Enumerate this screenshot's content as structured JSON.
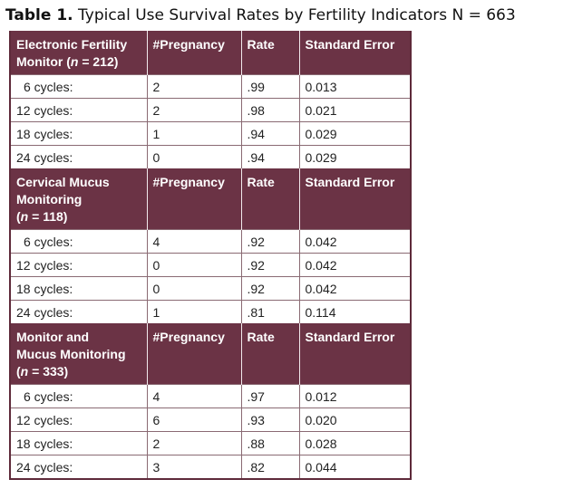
{
  "caption": {
    "label": "Table 1.",
    "text": "Typical Use Survival Rates by Fertility Indicators N = 663"
  },
  "columns": {
    "pregnancy": "#Pregnancy",
    "rate": "Rate",
    "se": "Standard Error"
  },
  "groups": [
    {
      "title_lines": [
        "Electronic Fertility",
        "Monitor ("
      ],
      "n_text": "n",
      "n_value": " = 212)",
      "rows": [
        {
          "cycles": "6 cycles:",
          "pregnancy": "2",
          "rate": ".99",
          "se": "0.013"
        },
        {
          "cycles": "12 cycles:",
          "pregnancy": "2",
          "rate": ".98",
          "se": "0.021"
        },
        {
          "cycles": "18 cycles:",
          "pregnancy": "1",
          "rate": ".94",
          "se": "0.029"
        },
        {
          "cycles": "24 cycles:",
          "pregnancy": "0",
          "rate": ".94",
          "se": "0.029"
        }
      ]
    },
    {
      "title_lines": [
        "Cervical Mucus",
        "Monitoring",
        "("
      ],
      "n_text": "n",
      "n_value": " = 118)",
      "rows": [
        {
          "cycles": "6 cycles:",
          "pregnancy": "4",
          "rate": ".92",
          "se": "0.042"
        },
        {
          "cycles": "12 cycles:",
          "pregnancy": "0",
          "rate": ".92",
          "se": "0.042"
        },
        {
          "cycles": "18 cycles:",
          "pregnancy": "0",
          "rate": ".92",
          "se": "0.042"
        },
        {
          "cycles": "24 cycles:",
          "pregnancy": "1",
          "rate": ".81",
          "se": "0.114"
        }
      ]
    },
    {
      "title_lines": [
        "Monitor and",
        "Mucus Monitoring",
        "("
      ],
      "n_text": "n",
      "n_value": " = 333)",
      "rows": [
        {
          "cycles": "6 cycles:",
          "pregnancy": "4",
          "rate": ".97",
          "se": "0.012"
        },
        {
          "cycles": "12 cycles:",
          "pregnancy": "6",
          "rate": ".93",
          "se": "0.020"
        },
        {
          "cycles": "18 cycles:",
          "pregnancy": "2",
          "rate": ".88",
          "se": "0.028"
        },
        {
          "cycles": "24 cycles:",
          "pregnancy": "3",
          "rate": ".82",
          "se": "0.044"
        }
      ]
    }
  ],
  "colors": {
    "header_bg": "#6b3345",
    "header_text": "#ffffff",
    "border": "#5e2a3a"
  }
}
